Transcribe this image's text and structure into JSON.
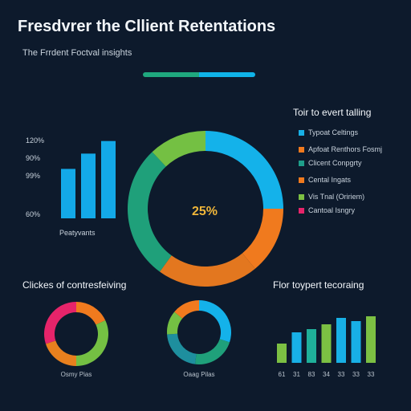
{
  "header": {
    "title": "Fresdvrer the Cllient Retentations",
    "subtitle": "The Frrdent Foctval insights",
    "accent_colors": [
      "#1fa87e",
      "#0fb3e8"
    ]
  },
  "legend": {
    "title": "Toir to evert talling",
    "items": [
      {
        "label": "Typoat Celtings",
        "color": "#18b0e6"
      },
      {
        "label": "Apfoat Renthors Fosmj",
        "color": "#f07a1e"
      },
      {
        "label": "Clicent Conpgrty",
        "color": "#1e9e8a"
      },
      {
        "label": "Cental Ingats",
        "color": "#f07a1e"
      },
      {
        "label": "Vis Tnal (Oririem)",
        "color": "#7cc043"
      },
      {
        "label": "Cantoal Isngry",
        "color": "#e6246a"
      }
    ]
  },
  "chart_data": [
    {
      "type": "bar",
      "values": [
        55,
        72,
        86
      ],
      "tick_labels": [
        "120%",
        "90%",
        "99%",
        "60%"
      ],
      "caption": "Peatyvants",
      "color": "#13a9e8"
    },
    {
      "type": "pie",
      "center_label": "25%",
      "slices": [
        {
          "value": 25,
          "color": "#14b2ea"
        },
        {
          "value": 14,
          "color": "#f07a1e"
        },
        {
          "value": 21,
          "color": "#e3771f"
        },
        {
          "value": 28,
          "color": "#1fa07a"
        },
        {
          "value": 12,
          "color": "#74c043"
        }
      ]
    },
    {
      "type": "pie",
      "title": "Clickes of contresfeiving",
      "caption": "Osmy Pias",
      "slices": [
        {
          "value": 18,
          "color": "#f07a1e"
        },
        {
          "value": 32,
          "color": "#74c043"
        },
        {
          "value": 20,
          "color": "#e8801e"
        },
        {
          "value": 30,
          "color": "#e6246a"
        }
      ]
    },
    {
      "type": "pie",
      "caption": "Oaag Pilas",
      "slices": [
        {
          "value": 30,
          "color": "#14b2ea"
        },
        {
          "value": 22,
          "color": "#1fa07a"
        },
        {
          "value": 22,
          "color": "#1e8f9e"
        },
        {
          "value": 12,
          "color": "#74c043"
        },
        {
          "value": 14,
          "color": "#f07a1e"
        }
      ]
    },
    {
      "type": "bar",
      "title": "Flor toypert tecoraing",
      "categories": [
        "61",
        "31",
        "83",
        "34",
        "33",
        "33",
        "33"
      ],
      "values": [
        24,
        38,
        42,
        48,
        56,
        52,
        58
      ],
      "colors": [
        "#7cc043",
        "#18b0e6",
        "#1fb09a",
        "#7cc043",
        "#18b0e6",
        "#18b0e6",
        "#7cc043"
      ]
    }
  ]
}
